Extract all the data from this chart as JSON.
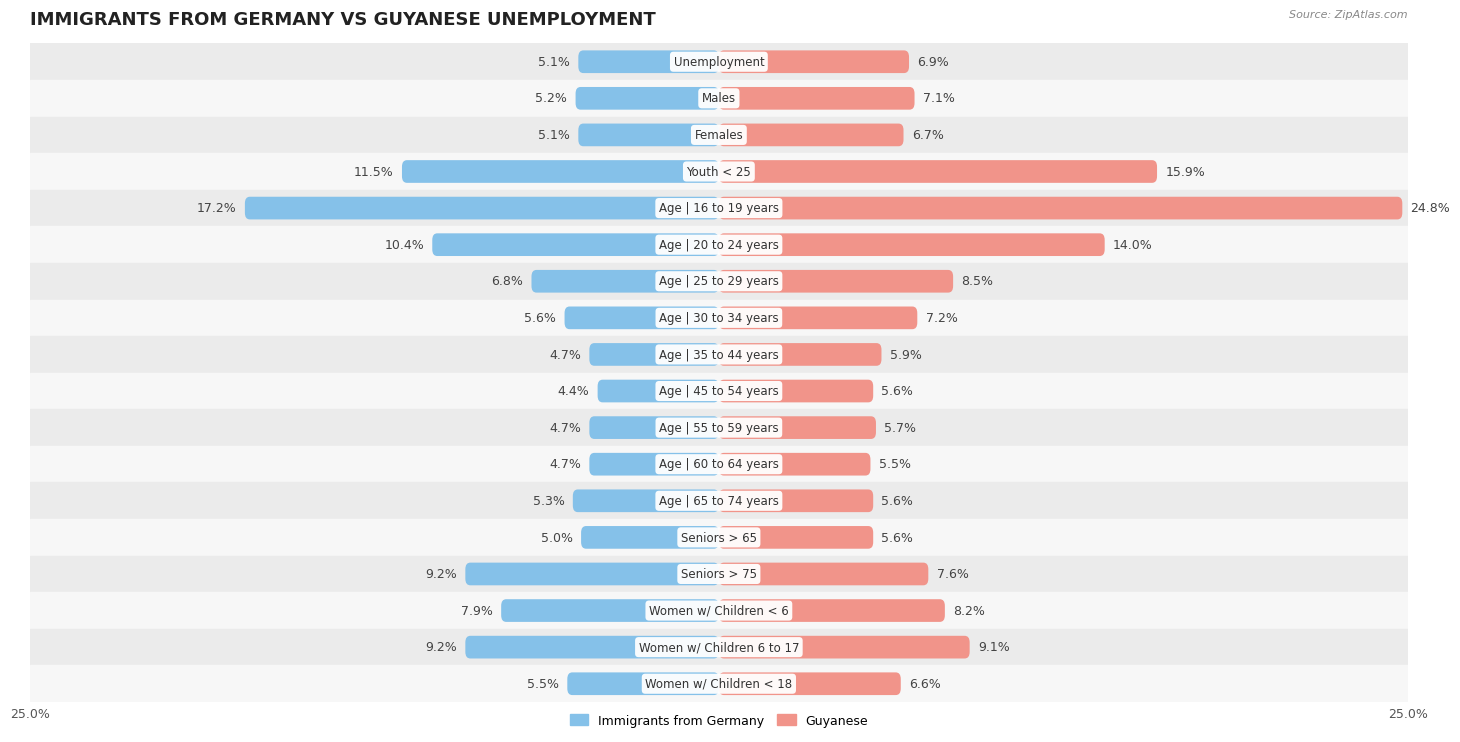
{
  "title": "IMMIGRANTS FROM GERMANY VS GUYANESE UNEMPLOYMENT",
  "source": "Source: ZipAtlas.com",
  "categories": [
    "Unemployment",
    "Males",
    "Females",
    "Youth < 25",
    "Age | 16 to 19 years",
    "Age | 20 to 24 years",
    "Age | 25 to 29 years",
    "Age | 30 to 34 years",
    "Age | 35 to 44 years",
    "Age | 45 to 54 years",
    "Age | 55 to 59 years",
    "Age | 60 to 64 years",
    "Age | 65 to 74 years",
    "Seniors > 65",
    "Seniors > 75",
    "Women w/ Children < 6",
    "Women w/ Children 6 to 17",
    "Women w/ Children < 18"
  ],
  "germany_values": [
    5.1,
    5.2,
    5.1,
    11.5,
    17.2,
    10.4,
    6.8,
    5.6,
    4.7,
    4.4,
    4.7,
    4.7,
    5.3,
    5.0,
    9.2,
    7.9,
    9.2,
    5.5
  ],
  "guyanese_values": [
    6.9,
    7.1,
    6.7,
    15.9,
    24.8,
    14.0,
    8.5,
    7.2,
    5.9,
    5.6,
    5.7,
    5.5,
    5.6,
    5.6,
    7.6,
    8.2,
    9.1,
    6.6
  ],
  "germany_color": "#85C1E9",
  "guyanese_color": "#F1948A",
  "background_row_odd": "#EBEBEB",
  "background_row_even": "#F7F7F7",
  "xlim": 25.0,
  "bar_height": 0.62,
  "title_fontsize": 13,
  "label_fontsize": 9,
  "category_fontsize": 8.5,
  "legend_fontsize": 9,
  "source_fontsize": 8,
  "axis_label_fontsize": 9
}
